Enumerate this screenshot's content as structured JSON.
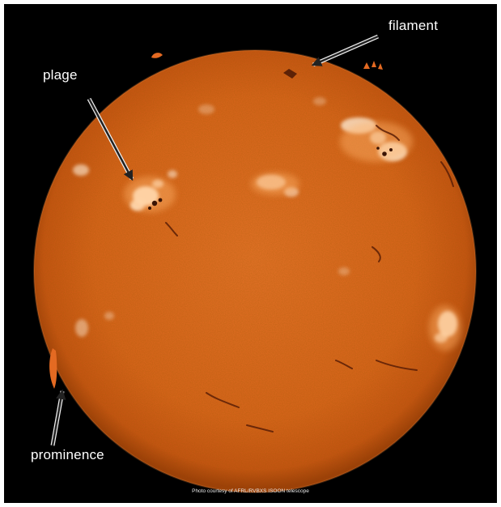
{
  "image": {
    "subject": "sun-chromosphere",
    "background_color": "#000000",
    "disk_color": "#d9621a",
    "highlight_color": "#fff3e0"
  },
  "labels": {
    "filament": "filament",
    "plage": "plage",
    "prominence": "prominence"
  },
  "credit": "Photo courtesy of AFRL/RVBXS ISOON telescope"
}
